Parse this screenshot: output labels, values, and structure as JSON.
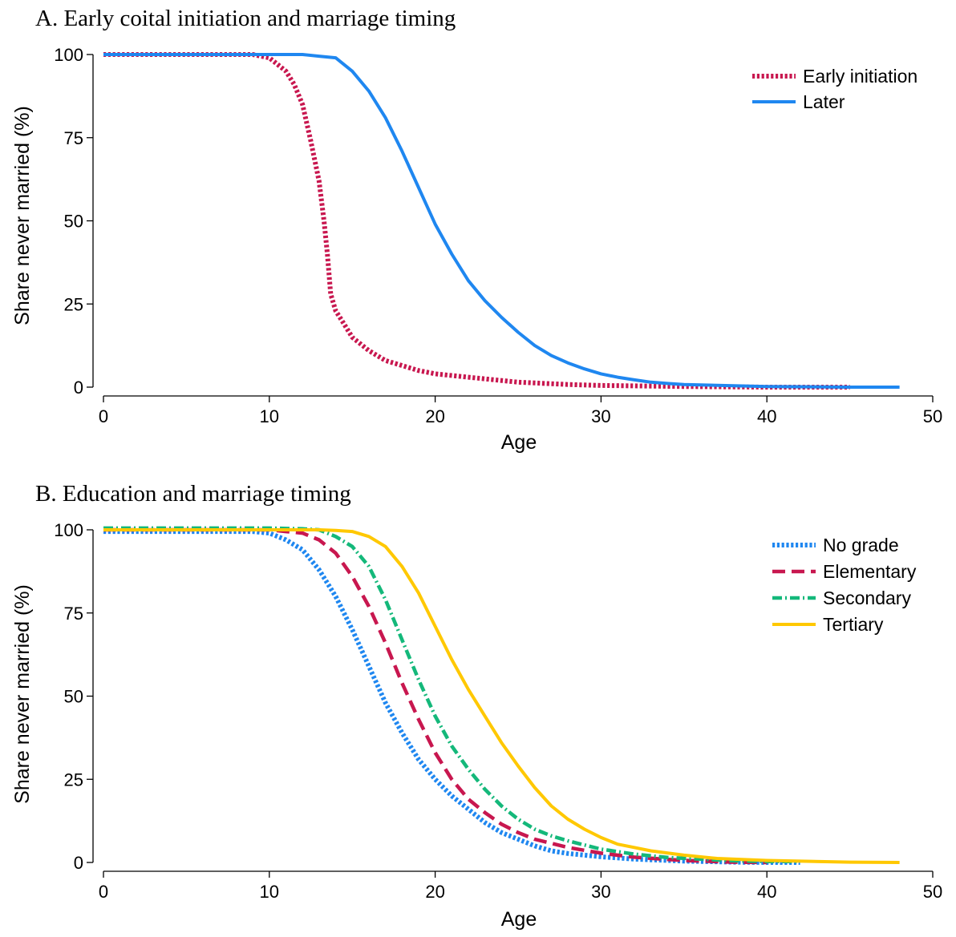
{
  "chart_data": [
    {
      "type": "line",
      "title": "A.  Early coital initiation and marriage timing",
      "xlabel": "Age",
      "ylabel": "Share never married (%)",
      "xlim": [
        0,
        50
      ],
      "ylim": [
        0,
        100
      ],
      "xticks": [
        0,
        10,
        20,
        30,
        40,
        50
      ],
      "yticks": [
        0,
        25,
        50,
        75,
        100
      ],
      "grid": false,
      "legend_position": "top-right",
      "series": [
        {
          "name": "Early initiation",
          "color": "#c8174f",
          "style": "dotted",
          "x": [
            0,
            9,
            10,
            11,
            11.5,
            12,
            12.5,
            13,
            13.3,
            13.5,
            13.7,
            14,
            14.5,
            15,
            16,
            17,
            18,
            19,
            20,
            22,
            25,
            28,
            30,
            35,
            40,
            45
          ],
          "y": [
            100,
            100,
            99,
            95,
            91,
            85,
            74,
            62,
            50,
            40,
            28,
            23,
            19,
            15,
            11,
            8,
            6.5,
            5,
            4,
            3,
            1.5,
            0.8,
            0.5,
            0.2,
            0,
            0
          ]
        },
        {
          "name": "Later",
          "color": "#1f87f0",
          "style": "solid",
          "x": [
            0,
            10,
            12,
            13,
            14,
            15,
            16,
            17,
            18,
            19,
            20,
            21,
            22,
            23,
            24,
            25,
            26,
            27,
            28,
            29,
            30,
            31,
            32,
            33,
            34,
            35,
            40,
            45,
            48
          ],
          "y": [
            100,
            100,
            100,
            99.5,
            99,
            95,
            89,
            81,
            71,
            60,
            49,
            40,
            32,
            26,
            21,
            16.5,
            12.5,
            9.5,
            7.3,
            5.5,
            4,
            3,
            2.2,
            1.5,
            1.1,
            0.8,
            0.2,
            0,
            0
          ]
        }
      ]
    },
    {
      "type": "line",
      "title": "B.  Education and marriage timing",
      "xlabel": "Age",
      "ylabel": "Share never married (%)",
      "xlim": [
        0,
        50
      ],
      "ylim": [
        0,
        100
      ],
      "xticks": [
        0,
        10,
        20,
        30,
        40,
        50
      ],
      "yticks": [
        0,
        25,
        50,
        75,
        100
      ],
      "grid": false,
      "legend_position": "top-right",
      "series": [
        {
          "name": "No grade",
          "color": "#1f87f0",
          "style": "dotted",
          "x": [
            0,
            9,
            10,
            11,
            12,
            13,
            14,
            15,
            16,
            17,
            18,
            19,
            20,
            21,
            22,
            23,
            24,
            25,
            26,
            27,
            28,
            30,
            32,
            35,
            38,
            40,
            42
          ],
          "y": [
            99.5,
            99.5,
            99,
            97,
            94,
            88,
            80,
            70,
            59,
            48,
            39,
            31,
            25,
            20,
            16,
            12,
            9,
            7,
            5,
            3.5,
            2.7,
            1.7,
            1,
            0.4,
            0.1,
            0,
            0
          ]
        },
        {
          "name": "Elementary",
          "color": "#c8174f",
          "style": "dashed",
          "x": [
            0,
            10,
            11,
            12,
            13,
            14,
            15,
            16,
            17,
            18,
            19,
            20,
            21,
            22,
            23,
            24,
            25,
            26,
            28,
            30,
            32,
            35,
            38,
            40
          ],
          "y": [
            100,
            100,
            99.5,
            99,
            97,
            93,
            86,
            77,
            66,
            54,
            43,
            33,
            25,
            19,
            15,
            11.5,
            9,
            7,
            4.5,
            2.8,
            1.6,
            0.6,
            0.1,
            0
          ]
        },
        {
          "name": "Secondary",
          "color": "#14b87a",
          "style": "dashdot",
          "x": [
            0,
            10,
            12,
            13,
            14,
            15,
            16,
            17,
            18,
            19,
            20,
            21,
            22,
            23,
            24,
            25,
            26,
            27,
            28,
            30,
            32,
            34,
            36,
            38,
            40,
            42
          ],
          "y": [
            100.5,
            100.5,
            100.3,
            100,
            98,
            95,
            89,
            79,
            67,
            55,
            44,
            35,
            28,
            22,
            17,
            13,
            10,
            8,
            6.5,
            4,
            2.5,
            1.5,
            1,
            0.5,
            0.3,
            0.3
          ]
        },
        {
          "name": "Tertiary",
          "color": "#ffc800",
          "style": "solid",
          "x": [
            0,
            10,
            13,
            14,
            15,
            16,
            17,
            18,
            19,
            20,
            21,
            22,
            23,
            24,
            25,
            26,
            27,
            28,
            29,
            30,
            31,
            32,
            33,
            35,
            37,
            40,
            45,
            48
          ],
          "y": [
            100,
            100,
            100,
            99.8,
            99.5,
            98,
            95,
            89,
            81,
            71,
            61,
            52,
            44,
            36,
            29,
            22.5,
            17,
            13,
            10,
            7.5,
            5.5,
            4.5,
            3.5,
            2.2,
            1.2,
            0.6,
            0.1,
            0
          ]
        }
      ]
    }
  ]
}
